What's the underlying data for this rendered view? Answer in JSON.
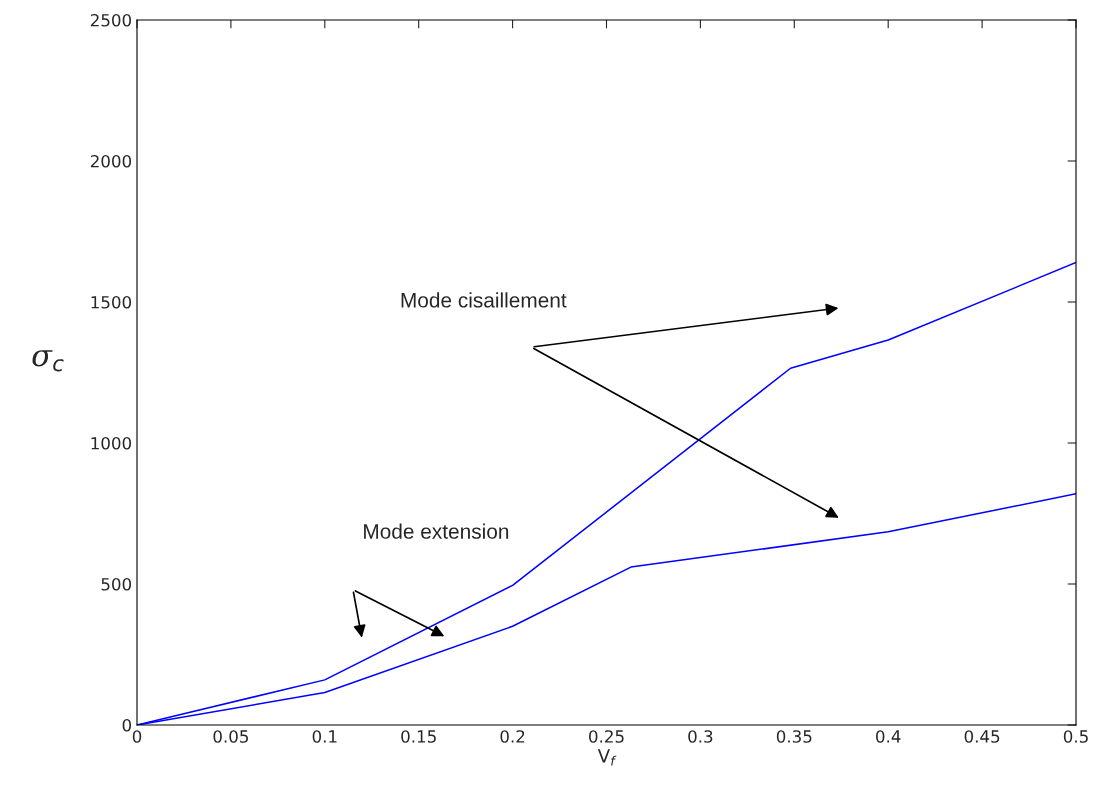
{
  "chart_data": {
    "type": "line",
    "xlabel": "V$_{f}$",
    "ylabel": "σ$_{c}$",
    "series": [
      {
        "color": "#0000ff",
        "x": [
          0,
          0.1,
          0.2,
          0.348,
          0.4,
          0.5
        ],
        "values": [
          0,
          160,
          495,
          1265,
          1365,
          1640
        ]
      },
      {
        "color": "#0000ff",
        "x": [
          0,
          0.1,
          0.2,
          0.263,
          0.4,
          0.5
        ],
        "values": [
          0,
          115,
          350,
          560,
          685,
          820
        ]
      }
    ],
    "xlim": [
      0,
      0.5
    ],
    "ylim": [
      0,
      2500
    ],
    "xticks": [
      0,
      0.05,
      0.1,
      0.15,
      0.2,
      0.25,
      0.3,
      0.35,
      0.4,
      0.45,
      0.5
    ],
    "yticks": [
      0,
      500,
      1000,
      1500,
      2000,
      2500
    ],
    "grid": false,
    "legend": false,
    "marker": "none",
    "line_style": "solid",
    "annotations": [
      "Mode cisaillement",
      "Mode extension"
    ]
  }
}
